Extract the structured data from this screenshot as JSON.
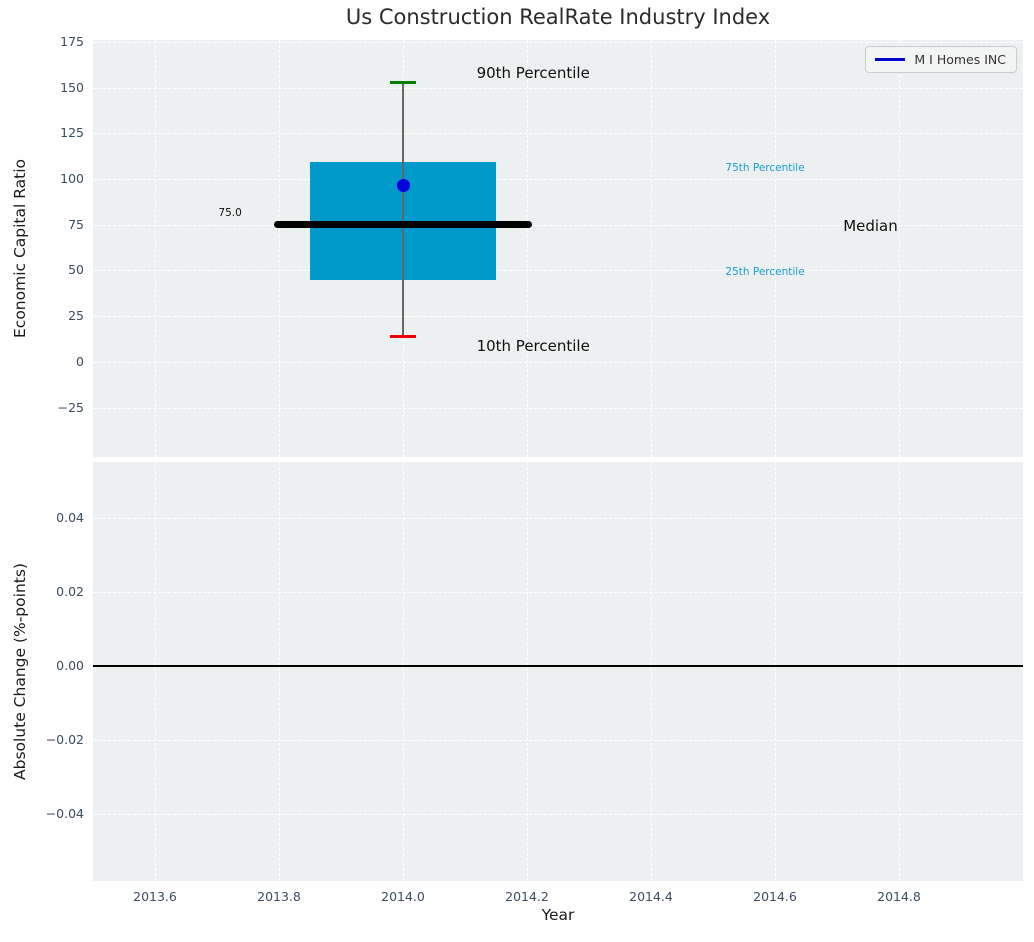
{
  "chart_data": [
    {
      "type": "boxplot",
      "title": "Us Construction RealRate Industry Index",
      "ylabel": "Economic Capital Ratio",
      "xlim": [
        2013.5,
        2015.0
      ],
      "ylim": [
        -52,
        176
      ],
      "grid": true,
      "yticks": [
        {
          "v": 175,
          "label": "175"
        },
        {
          "v": 150,
          "label": "150"
        },
        {
          "v": 125,
          "label": "125"
        },
        {
          "v": 100,
          "label": "100"
        },
        {
          "v": 75,
          "label": "75"
        },
        {
          "v": 50,
          "label": "50"
        },
        {
          "v": 25,
          "label": "25"
        },
        {
          "v": 0,
          "label": "0"
        },
        {
          "v": -25,
          "label": "−25"
        }
      ],
      "box": {
        "x": 2014.0,
        "box_width_years": 0.3,
        "median_span_years": 0.416,
        "p10": 14,
        "p25": 45,
        "median": 75.0,
        "p75": 109.5,
        "p90": 152.5,
        "fill_color": "#0099cc",
        "median_color": "#000000",
        "whisker_color": "#666666",
        "cap90_color": "#008000",
        "cap10_color": "#ee0000"
      },
      "company_point": {
        "name": "M I Homes INC",
        "x": 2014.0,
        "y": 96.5,
        "color": "#0000dd"
      },
      "legend": {
        "position": "upper right",
        "entries": [
          {
            "label": "M I Homes INC",
            "color": "#0000cc"
          }
        ]
      },
      "annotations": [
        {
          "text": "90th Percentile",
          "x": 2014.21,
          "y": 158,
          "color": "#111111",
          "size": 15,
          "align": "center"
        },
        {
          "text": "10th Percentile",
          "x": 2014.21,
          "y": 8.5,
          "color": "#111111",
          "size": 15,
          "align": "center"
        },
        {
          "text": "75th Percentile",
          "x": 2014.52,
          "y": 106,
          "color": "#189ec9",
          "size": 10.5,
          "align": "left"
        },
        {
          "text": "25th Percentile",
          "x": 2014.52,
          "y": 49,
          "color": "#189ec9",
          "size": 10.5,
          "align": "left"
        },
        {
          "text": "Median",
          "x": 2014.71,
          "y": 74.5,
          "color": "#111111",
          "size": 15,
          "align": "left"
        },
        {
          "text": "75.0",
          "x": 2013.74,
          "y": 81.5,
          "color": "#111111",
          "size": 10.5,
          "align": "right"
        }
      ]
    },
    {
      "type": "line",
      "ylabel": "Absolute Change (%-points)",
      "xlabel": "Year",
      "xlim": [
        2013.5,
        2015.0
      ],
      "ylim": [
        -0.058,
        0.055
      ],
      "grid": true,
      "series": [],
      "zero_line": {
        "y": 0.0,
        "color": "#000000"
      },
      "yticks": [
        {
          "v": 0.04,
          "label": "0.04"
        },
        {
          "v": 0.02,
          "label": "0.02"
        },
        {
          "v": 0.0,
          "label": "0.00"
        },
        {
          "v": -0.02,
          "label": "−0.02"
        },
        {
          "v": -0.04,
          "label": "−0.04"
        }
      ],
      "xticks": [
        {
          "v": 2013.6,
          "label": "2013.6"
        },
        {
          "v": 2013.8,
          "label": "2013.8"
        },
        {
          "v": 2014.0,
          "label": "2014.0"
        },
        {
          "v": 2014.2,
          "label": "2014.2"
        },
        {
          "v": 2014.4,
          "label": "2014.4"
        },
        {
          "v": 2014.6,
          "label": "2014.6"
        },
        {
          "v": 2014.8,
          "label": "2014.8"
        }
      ]
    }
  ]
}
